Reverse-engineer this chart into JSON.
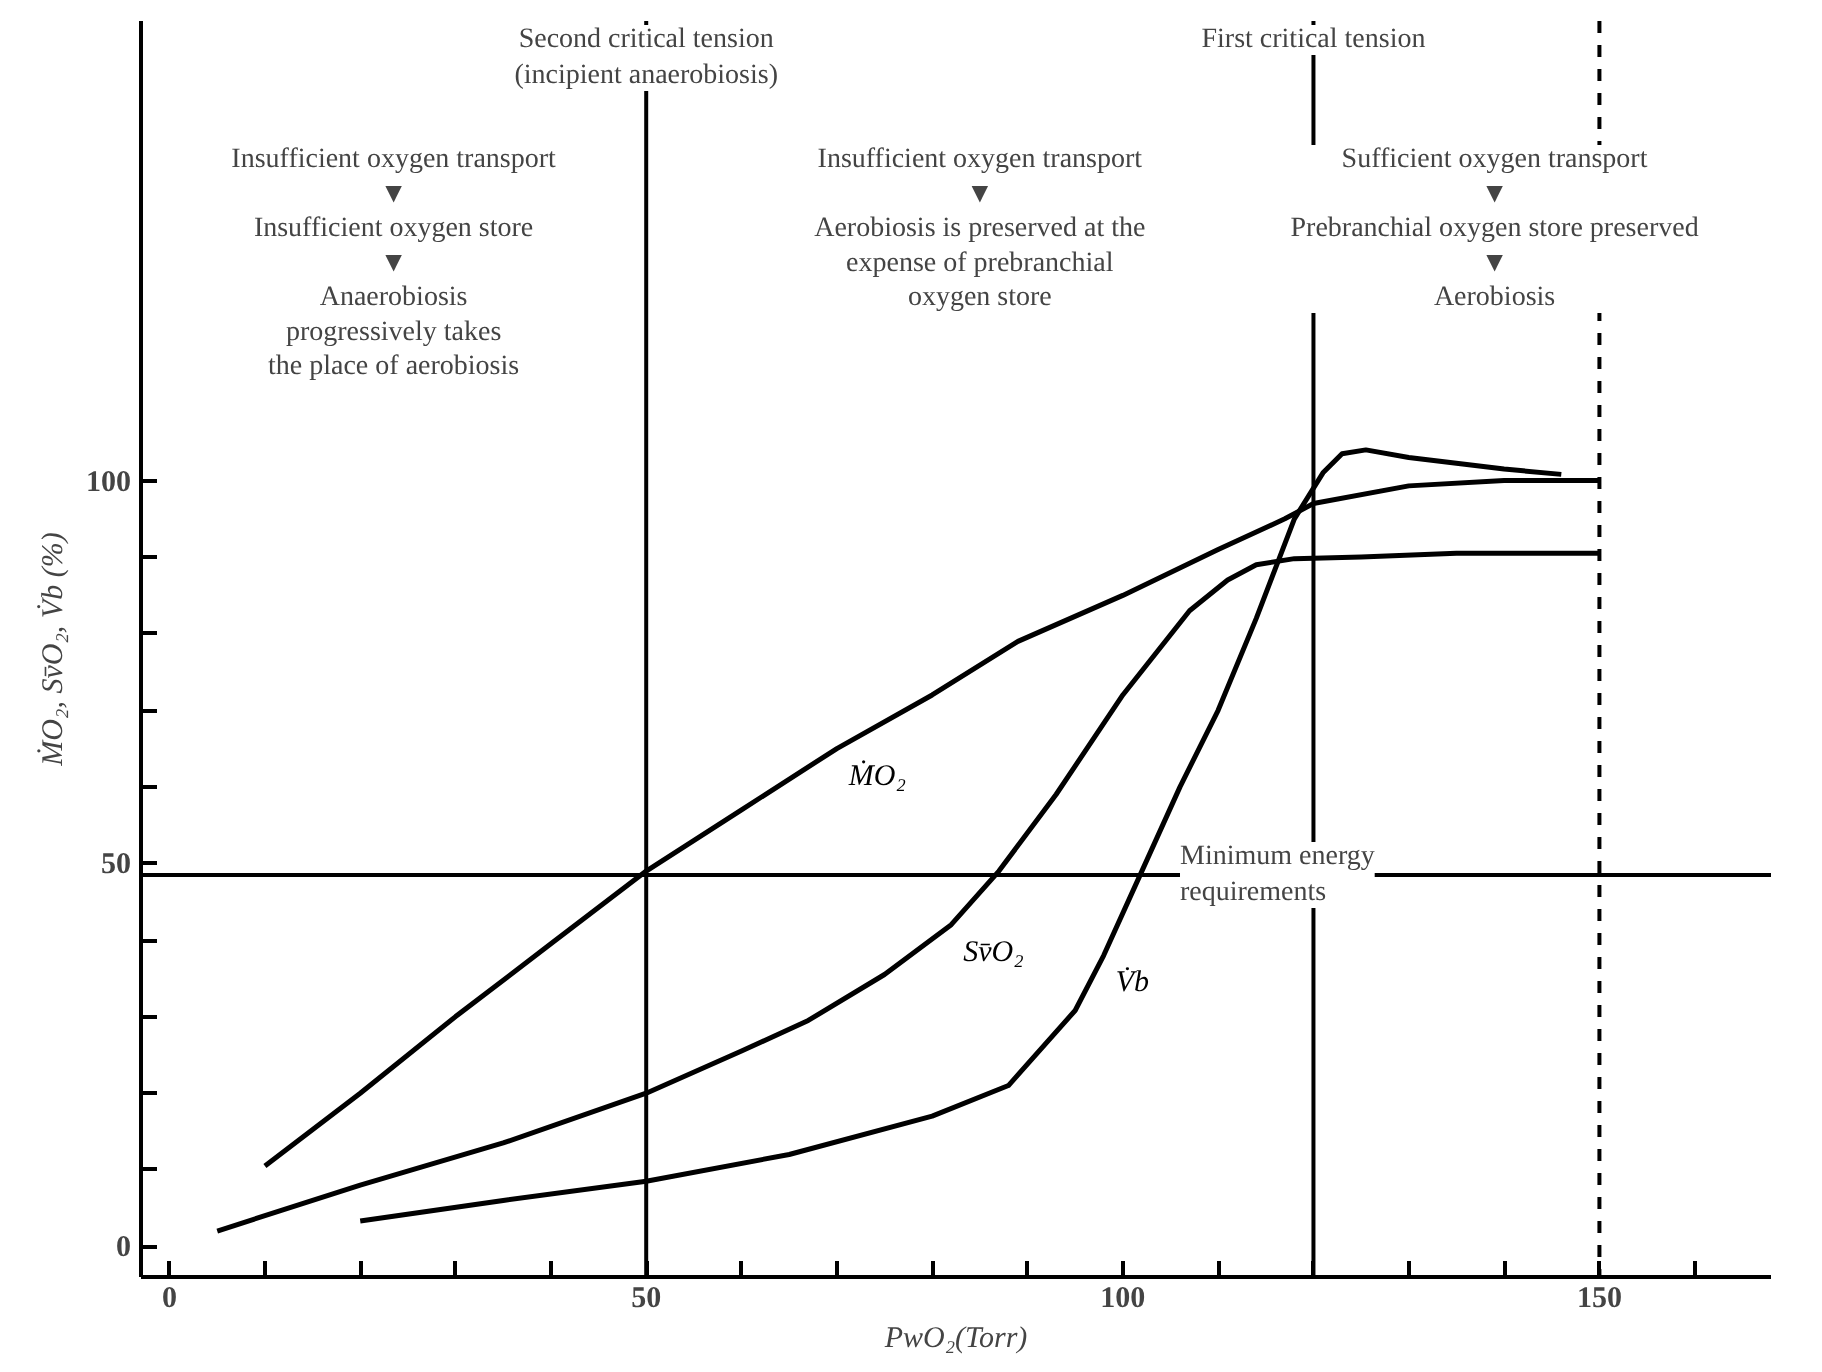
{
  "chart_data": {
    "type": "line",
    "xlabel": "PwO₂(Torr)",
    "ylabel": "ṀO₂, Sv̄O₂, V̇b (%)",
    "xlim": [
      -3,
      168
    ],
    "ylim": [
      -4,
      160
    ],
    "xticks": [
      0,
      {
        "value": 10,
        "label": null
      },
      {
        "value": 20,
        "label": null
      },
      {
        "value": 30,
        "label": null
      },
      {
        "value": 40,
        "label": null
      },
      50,
      {
        "value": 60,
        "label": null
      },
      {
        "value": 70,
        "label": null
      },
      {
        "value": 80,
        "label": null
      },
      {
        "value": 90,
        "label": null
      },
      100,
      {
        "value": 110,
        "label": null
      },
      {
        "value": 120,
        "label": null
      },
      {
        "value": 130,
        "label": null
      },
      {
        "value": 140,
        "label": null
      },
      150,
      {
        "value": 160,
        "label": null
      }
    ],
    "yticks": [
      0,
      {
        "value": 10,
        "label": null
      },
      {
        "value": 20,
        "label": null
      },
      {
        "value": 30,
        "label": null
      },
      {
        "value": 40,
        "label": null
      },
      50,
      {
        "value": 60,
        "label": null
      },
      {
        "value": 70,
        "label": null
      },
      {
        "value": 80,
        "label": null
      },
      {
        "value": 90,
        "label": null
      },
      100
    ],
    "grid": false,
    "marker": "none",
    "line_style": "solid",
    "series": [
      {
        "name": "ṀO₂",
        "color": "#000000",
        "x": [
          10,
          20,
          30,
          40,
          50,
          60,
          70,
          80,
          89,
          100,
          110,
          117,
          120,
          130,
          140,
          150
        ],
        "values": [
          10.5,
          20,
          30,
          39.5,
          49,
          57,
          65,
          72,
          79,
          85,
          91,
          95,
          97,
          99.3,
          100,
          100
        ]
      },
      {
        "name": "Sv̄O₂",
        "color": "#000000",
        "x": [
          5,
          20,
          35,
          50,
          60,
          67,
          75,
          82,
          87,
          93,
          100,
          107,
          111,
          114,
          118,
          125,
          135,
          150
        ],
        "values": [
          2,
          8,
          13.5,
          20,
          25.5,
          29.5,
          35.5,
          42,
          49,
          59,
          72,
          83,
          87,
          89,
          89.8,
          90,
          90.5,
          90.5
        ]
      },
      {
        "name": "V̇b",
        "color": "#000000",
        "x": [
          20,
          35,
          50,
          65,
          80,
          88,
          95,
          98,
          102,
          106,
          110,
          114,
          118,
          121,
          123,
          125.5,
          130,
          140,
          146
        ],
        "values": [
          3.3,
          6,
          8.5,
          12,
          17,
          21,
          30.8,
          38,
          49,
          60,
          70,
          82,
          95,
          101,
          103.5,
          104,
          103,
          101.5,
          100.8
        ]
      }
    ],
    "ref_lines": [
      {
        "axis": "x",
        "value": 50,
        "label": "Second critical tension\n(incipient anaerobiosis)",
        "line_style": "solid"
      },
      {
        "axis": "x",
        "value": 120,
        "label": "First critical tension",
        "line_style": "solid"
      },
      {
        "axis": "x",
        "value": 150,
        "label": null,
        "line_style": "dashed"
      },
      {
        "axis": "y",
        "value": 48.5,
        "label": "Minimum energy\nrequirements",
        "line_style": "solid"
      }
    ],
    "annotations": [
      "Insufficient oxygen transport\n▼\nInsufficient oxygen store\n▼\nAnaerobiosis\nprogressively takes\nthe place of aerobiosis",
      "Insufficient oxygen transport\n▼\nAerobiosis is preserved at the\nexpense of prebranchial\noxygen store",
      "Sufficient oxygen transport\n▼\nPrebranchial oxygen store preserved\n▼\nAerobiosis"
    ]
  }
}
